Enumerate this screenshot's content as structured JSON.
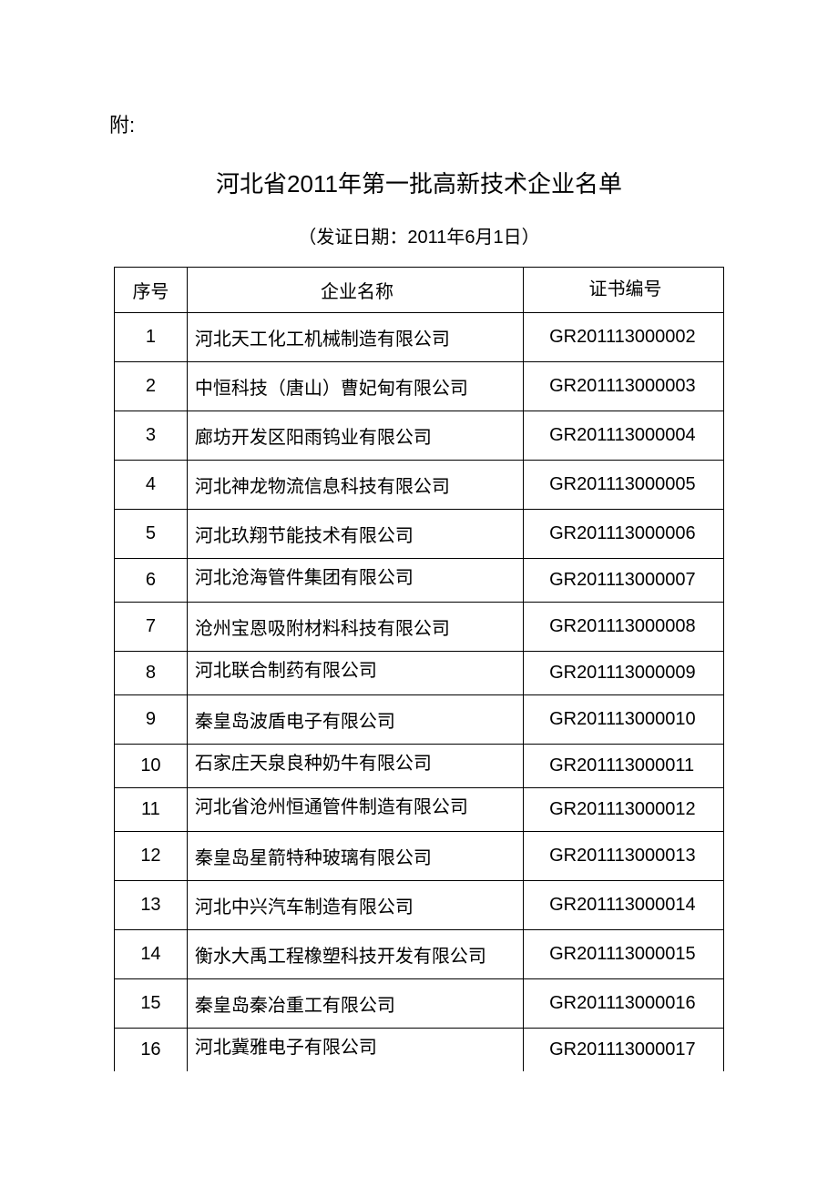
{
  "prefix": "附:",
  "title": "河北省2011年第一批高新技术企业名单",
  "subtitle": "（发证日期：2011年6月1日）",
  "table": {
    "columns": [
      "序号",
      "企业名称",
      "证书编号"
    ],
    "rows": [
      {
        "num": "1",
        "name": "河北天工化工机械制造有限公司",
        "cert": "GR201113000002",
        "numAlign": "center",
        "nameAlign": "middle"
      },
      {
        "num": "2",
        "name": "中恒科技（唐山）曹妃甸有限公司",
        "cert": "GR201113000003",
        "numAlign": "center",
        "nameAlign": "middle"
      },
      {
        "num": "3",
        "name": "廊坊开发区阳雨钨业有限公司",
        "cert": "GR201113000004",
        "numAlign": "center",
        "nameAlign": "middle"
      },
      {
        "num": "4",
        "name": "河北神龙物流信息科技有限公司",
        "cert": "GR201113000005",
        "numAlign": "center",
        "nameAlign": "middle"
      },
      {
        "num": "5",
        "name": "河北玖翔节能技术有限公司",
        "cert": "GR201113000006",
        "numAlign": "center",
        "nameAlign": "middle"
      },
      {
        "num": "6",
        "name": "河北沧海管件集团有限公司",
        "cert": "GR201113000007",
        "numAlign": "bottom",
        "nameAlign": "top"
      },
      {
        "num": "7",
        "name": "沧州宝恩吸附材料科技有限公司",
        "cert": "GR201113000008",
        "numAlign": "center",
        "nameAlign": "middle"
      },
      {
        "num": "8",
        "name": "河北联合制药有限公司",
        "cert": "GR201113000009",
        "numAlign": "bottom",
        "nameAlign": "top"
      },
      {
        "num": "9",
        "name": "秦皇岛波盾电子有限公司",
        "cert": "GR201113000010",
        "numAlign": "center",
        "nameAlign": "middle"
      },
      {
        "num": "10",
        "name": "石家庄天泉良种奶牛有限公司",
        "cert": "GR201113000011",
        "numAlign": "bottom",
        "nameAlign": "top"
      },
      {
        "num": "11",
        "name": "河北省沧州恒通管件制造有限公司",
        "cert": "GR201113000012",
        "numAlign": "bottom",
        "nameAlign": "top"
      },
      {
        "num": "12",
        "name": "秦皇岛星箭特种玻璃有限公司",
        "cert": "GR201113000013",
        "numAlign": "center",
        "nameAlign": "middle"
      },
      {
        "num": "13",
        "name": "河北中兴汽车制造有限公司",
        "cert": "GR201113000014",
        "numAlign": "center",
        "nameAlign": "middle"
      },
      {
        "num": "14",
        "name": "衡水大禹工程橡塑科技开发有限公司",
        "cert": "GR201113000015",
        "numAlign": "center",
        "nameAlign": "middle"
      },
      {
        "num": "15",
        "name": "秦皇岛秦冶重工有限公司",
        "cert": "GR201113000016",
        "numAlign": "center",
        "nameAlign": "middle"
      },
      {
        "num": "16",
        "name": "河北冀雅电子有限公司",
        "cert": "GR201113000017",
        "numAlign": "bottom",
        "nameAlign": "top"
      }
    ]
  }
}
